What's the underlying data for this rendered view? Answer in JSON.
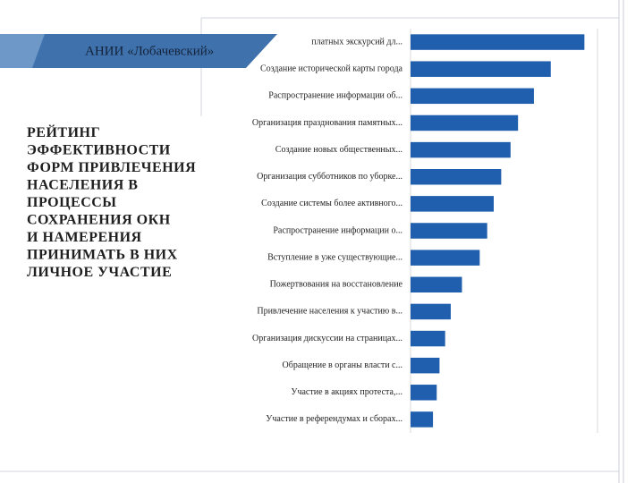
{
  "slide": {
    "banner": "АНИИ «Лобачевский»",
    "title_lines": [
      "РЕЙТИНГ",
      "ЭФФЕКТИВНОСТИ",
      "ФОРМ ПРИВЛЕЧЕНИЯ",
      "НАСЕЛЕНИЯ В",
      "ПРОЦЕССЫ",
      "СОХРАНЕНИЯ ОКН",
      "И НАМЕРЕНИЯ",
      "ПРИНИМАТЬ В НИХ",
      "ЛИЧНОЕ УЧАСТИЕ"
    ]
  },
  "chart_data": {
    "type": "hbar",
    "color": "#1f5fae",
    "grid": true,
    "xlim": [
      0,
      2
    ],
    "categories": [
      "платных экскурсий дл...",
      "Создание исторической карты города",
      "Распространение информации об...",
      "Организация празднования памятных...",
      "Создание новых общественных...",
      "Организация субботников по уборке...",
      "Создание системы более активного...",
      "Распространение информации о...",
      "Вступление в уже существующие...",
      "Пожертвования на восстановление",
      "Привлечение населения к участию в...",
      "Организация дискуссии на страницах...",
      "Обращение в органы власти с...",
      "Участие в акциях протеста,...",
      "Участие в референдумах и сборах..."
    ],
    "values": [
      1.86,
      1.5,
      1.32,
      1.15,
      1.07,
      0.97,
      0.89,
      0.82,
      0.74,
      0.55,
      0.43,
      0.37,
      0.31,
      0.28,
      0.24
    ]
  }
}
